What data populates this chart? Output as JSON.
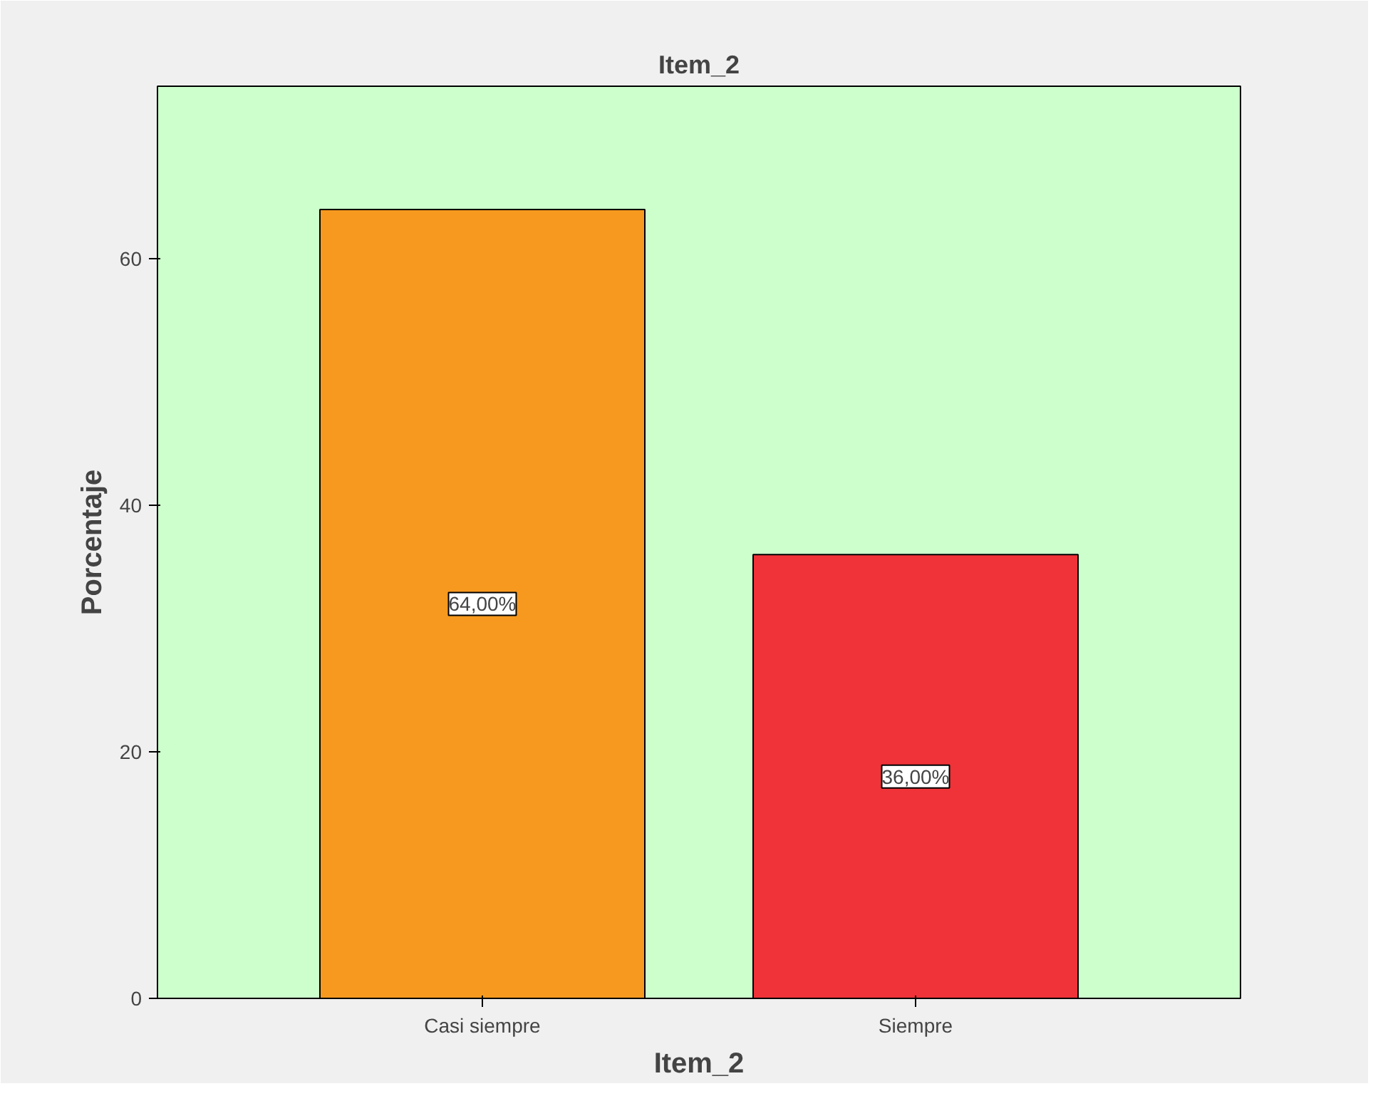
{
  "chart_data": {
    "type": "bar",
    "title": "Item_2",
    "xlabel": "Item_2",
    "ylabel": "Porcentaje",
    "categories": [
      "Casi siempre",
      "Siempre"
    ],
    "values": [
      64,
      36
    ],
    "colors": [
      "#f7991f",
      "#ef3338"
    ],
    "value_labels": [
      "64,00%",
      "36,00%"
    ],
    "ylim": [
      0,
      74
    ],
    "yticks": [
      0,
      20,
      40,
      60
    ],
    "grid": false
  }
}
